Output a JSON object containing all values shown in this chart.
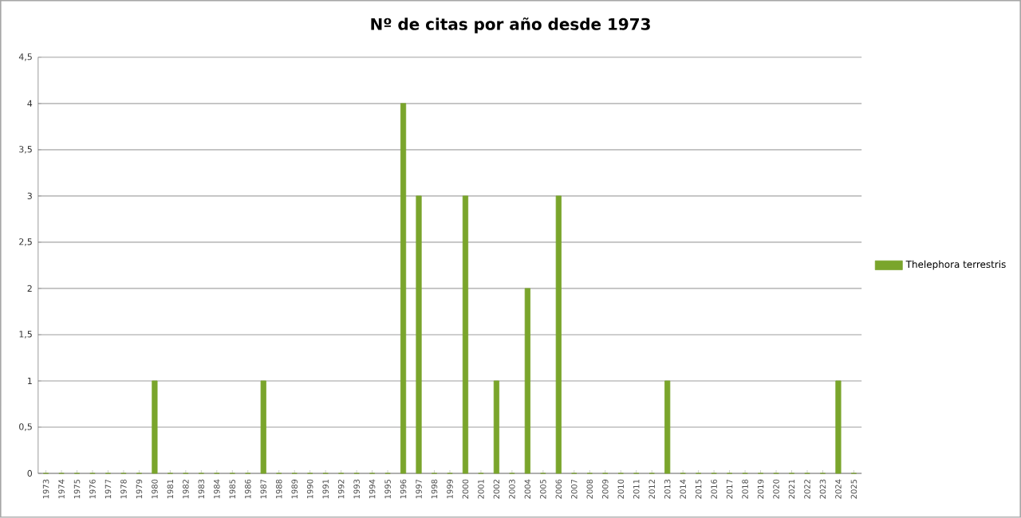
{
  "chart_data": {
    "type": "bar",
    "title": "Nº de citas por año desde 1973",
    "categories": [
      "1973",
      "1974",
      "1975",
      "1976",
      "1977",
      "1978",
      "1979",
      "1980",
      "1981",
      "1982",
      "1983",
      "1984",
      "1985",
      "1986",
      "1987",
      "1988",
      "1989",
      "1990",
      "1991",
      "1992",
      "1993",
      "1994",
      "1995",
      "1996",
      "1997",
      "1998",
      "1999",
      "2000",
      "2001",
      "2002",
      "2003",
      "2004",
      "2005",
      "2006",
      "2007",
      "2008",
      "2009",
      "2010",
      "2011",
      "2012",
      "2013",
      "2014",
      "2015",
      "2016",
      "2017",
      "2018",
      "2019",
      "2020",
      "2021",
      "2022",
      "2023",
      "2024",
      "2025"
    ],
    "series": [
      {
        "name": "Thelephora terrestris",
        "color": "#7aa52c",
        "values": [
          0,
          0,
          0,
          0,
          0,
          0,
          0,
          1,
          0,
          0,
          0,
          0,
          0,
          0,
          1,
          0,
          0,
          0,
          0,
          0,
          0,
          0,
          0,
          4,
          3,
          0,
          0,
          3,
          0,
          1,
          0,
          2,
          0,
          3,
          0,
          0,
          0,
          0,
          0,
          0,
          1,
          0,
          0,
          0,
          0,
          0,
          0,
          0,
          0,
          0,
          0,
          1,
          0
        ]
      }
    ],
    "ylim": [
      0,
      4.5
    ],
    "yticks": [
      0,
      {
        "value": 0.5,
        "label": "0,5"
      },
      1,
      {
        "value": 1.5,
        "label": "1,5"
      },
      2,
      {
        "value": 2.5,
        "label": "2,5"
      },
      3,
      {
        "value": 3.5,
        "label": "3,5"
      },
      4,
      {
        "value": 4.5,
        "label": "4,5"
      }
    ],
    "grid": "y",
    "legend": "right"
  }
}
